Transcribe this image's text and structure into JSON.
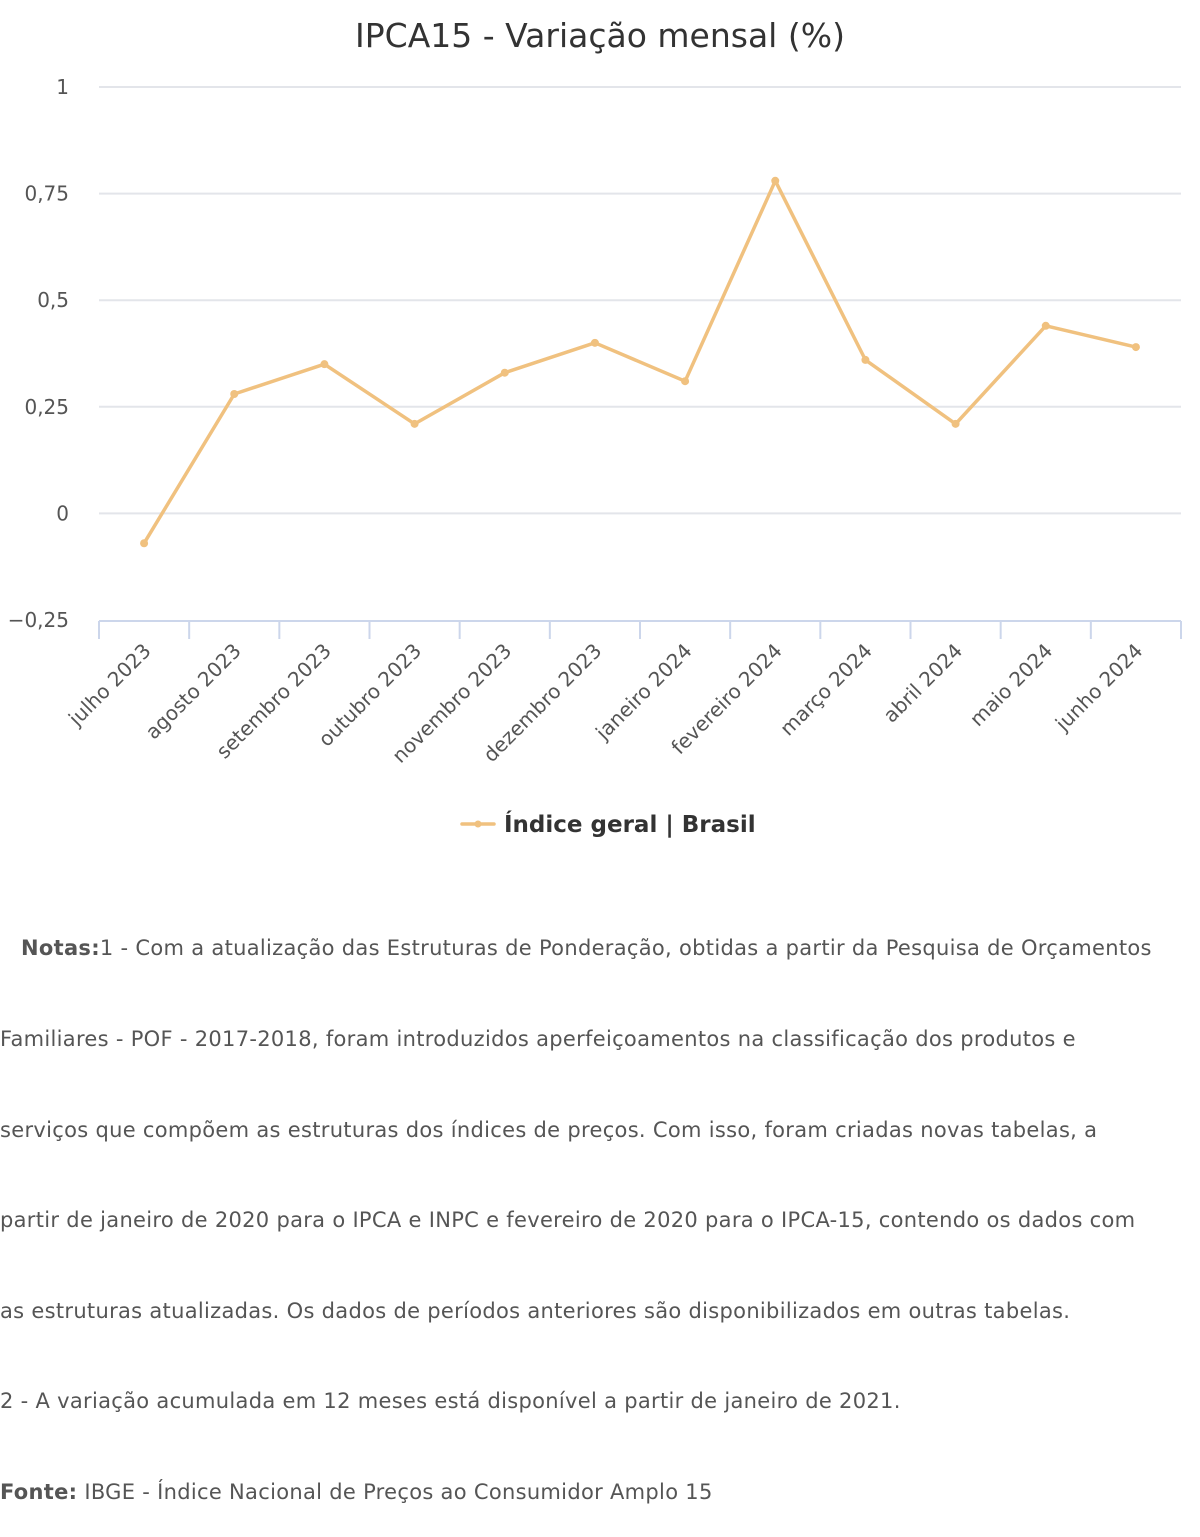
{
  "chart_data": {
    "type": "line",
    "title": "IPCA15 - Variação mensal (%)",
    "xlabel": "",
    "ylabel": "",
    "categories": [
      "julho 2023",
      "agosto 2023",
      "setembro 2023",
      "outubro 2023",
      "novembro 2023",
      "dezembro 2023",
      "janeiro 2024",
      "fevereiro 2024",
      "março 2024",
      "abril 2024",
      "maio 2024",
      "junho 2024"
    ],
    "series": [
      {
        "name": "Índice geral | Brasil",
        "values": [
          -0.07,
          0.28,
          0.35,
          0.21,
          0.33,
          0.4,
          0.31,
          0.78,
          0.36,
          0.21,
          0.44,
          0.39
        ],
        "color": "#f0c17f"
      }
    ],
    "ylim": [
      -0.25,
      1
    ],
    "y_ticks": [
      -0.25,
      0,
      0.25,
      0.5,
      0.75,
      1
    ],
    "y_tick_labels": [
      "−0,25",
      "0",
      "0,25",
      "0,5",
      "0,75",
      "1"
    ],
    "grid": true,
    "legend_position": "bottom"
  },
  "notes": {
    "label": "Notas:",
    "lines": [
      "1 - Com a atualização das Estruturas de Ponderação, obtidas a partir da Pesquisa de Orçamentos",
      "Familiares - POF - 2017-2018, foram introduzidos aperfeiçoamentos na classificação dos produtos e",
      "serviços que compõem as estruturas dos índices de preços. Com isso, foram criadas novas tabelas, a",
      "partir de janeiro de 2020 para o IPCA e INPC e fevereiro de 2020 para o IPCA-15, contendo os dados com",
      "as estruturas atualizadas. Os dados de períodos anteriores são disponibilizados em outras tabelas.",
      "2 - A variação acumulada em 12 meses está disponível a partir de janeiro de 2021."
    ],
    "source_label": "Fonte:",
    "source_text": " IBGE - Índice Nacional de Preços ao Consumidor Amplo 15"
  },
  "colors": {
    "grid": "#e3e5ea",
    "axis": "#ccd6eb",
    "line": "#f0c17f",
    "text": "#333333",
    "tick_text": "#555555"
  }
}
